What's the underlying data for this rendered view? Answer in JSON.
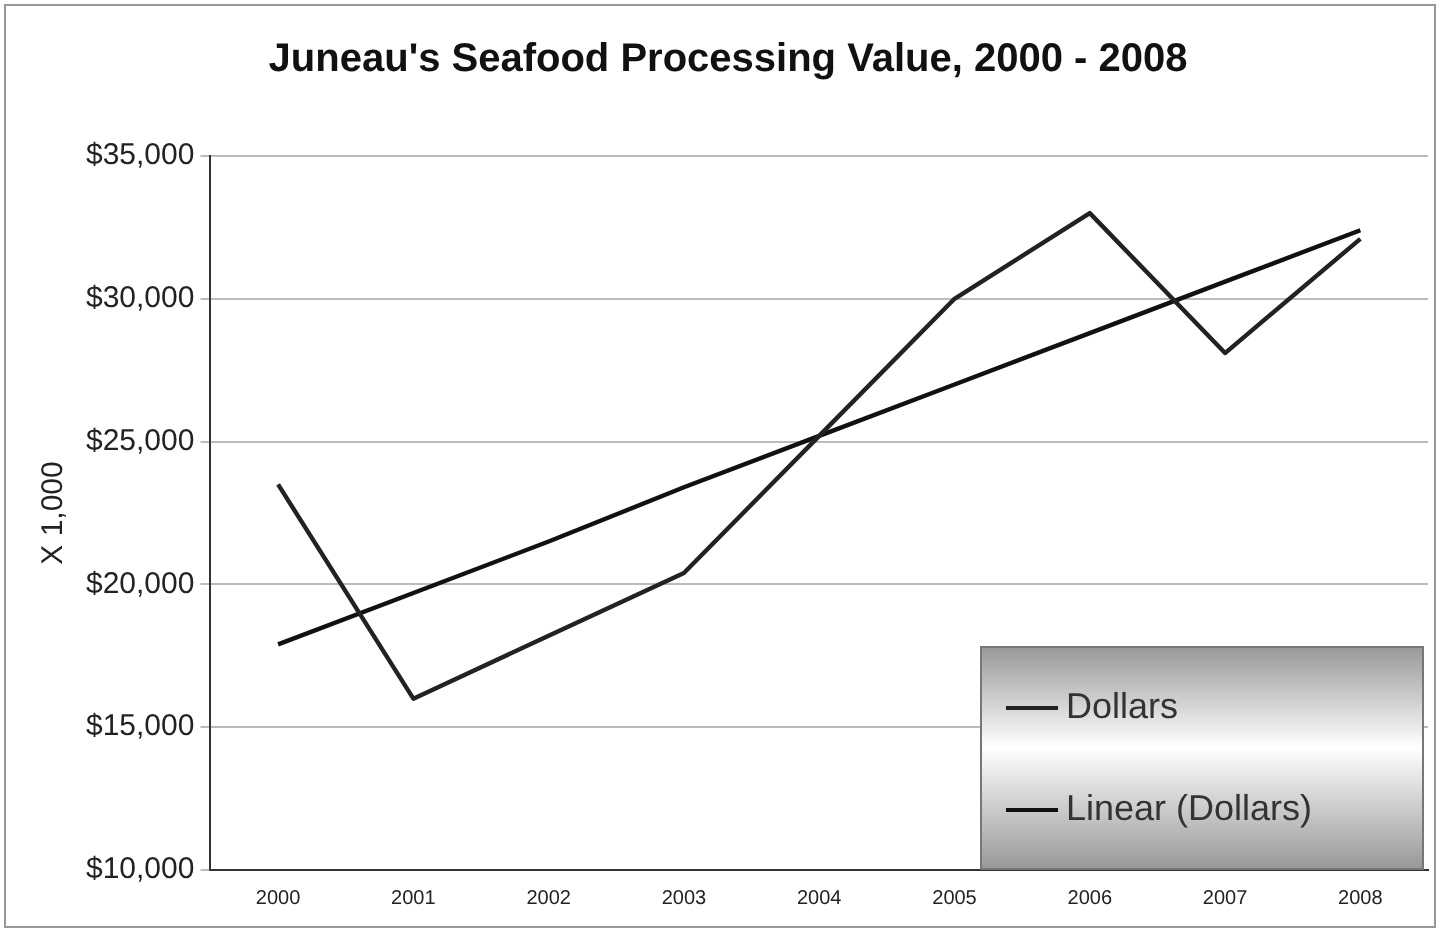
{
  "chart_data": {
    "type": "line",
    "title": "Juneau's Seafood Processing Value, 2000 - 2008",
    "ylabel": "X 1,000",
    "categories": [
      "2000",
      "2001",
      "2002",
      "2003",
      "2004",
      "2005",
      "2006",
      "2007",
      "2008"
    ],
    "series": [
      {
        "name": "Dollars",
        "color": "#222222",
        "values": [
          23500,
          16000,
          18200,
          20400,
          25200,
          30000,
          33000,
          28100,
          32100
        ]
      },
      {
        "name": "Linear (Dollars)",
        "color": "#111111",
        "values": [
          17900,
          19700,
          21500,
          23400,
          25200,
          27000,
          28800,
          30600,
          32400
        ]
      }
    ],
    "ylim": [
      10000,
      35000
    ],
    "yticks": [
      {
        "value": 10000,
        "label": "$10,000"
      },
      {
        "value": 15000,
        "label": "$15,000"
      },
      {
        "value": 20000,
        "label": "$20,000"
      },
      {
        "value": 25000,
        "label": "$25,000"
      },
      {
        "value": 30000,
        "label": "$30,000"
      },
      {
        "value": 35000,
        "label": "$35,000"
      }
    ],
    "grid": "y",
    "legend": "bottom right",
    "marker": "none",
    "line_style": "solid"
  }
}
